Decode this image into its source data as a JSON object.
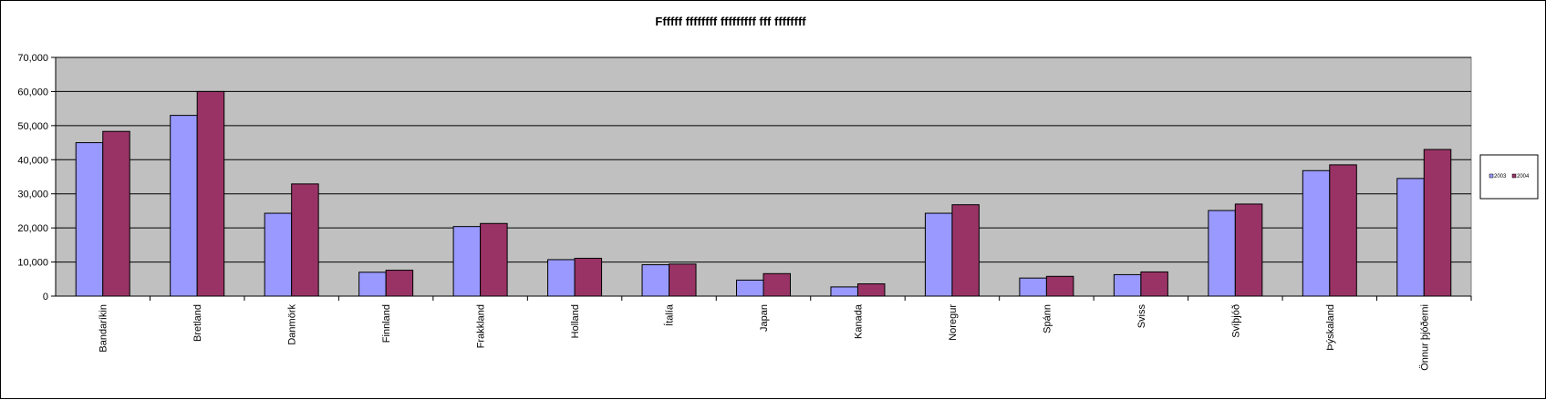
{
  "chart_data": {
    "type": "bar",
    "title": "Ffffff ffffffff fffffffff fff ffffffff",
    "xlabel": "",
    "ylabel": "",
    "ylim": [
      0,
      70000
    ],
    "yticks": [
      "0",
      "10,000",
      "20,000",
      "30,000",
      "40,000",
      "50,000",
      "60,000",
      "70,000"
    ],
    "ytick_values": [
      0,
      10000,
      20000,
      30000,
      40000,
      50000,
      60000,
      70000
    ],
    "grid": true,
    "legend_position": "right",
    "plot_background": "#c0c0c0",
    "categories": [
      "Bandaríkin",
      "Bretland",
      "Danmörk",
      "Finnland",
      "Frakkland",
      "Holland",
      "Ítalía",
      "Japan",
      "Kanada",
      "Noregur",
      "Spánn",
      "Sviss",
      "Svíþjóð",
      "Þýskaland",
      "Önnur þjóðerni"
    ],
    "series": [
      {
        "name": "2003",
        "color": "#9999ff",
        "values": [
          45000,
          53000,
          24300,
          7000,
          20400,
          10700,
          9200,
          4700,
          2700,
          24300,
          5300,
          6300,
          25100,
          36800,
          34500
        ]
      },
      {
        "name": "2004",
        "color": "#993366",
        "values": [
          48300,
          60000,
          32900,
          7600,
          21300,
          11100,
          9400,
          6600,
          3600,
          26800,
          5800,
          7100,
          27000,
          38500,
          43000
        ]
      }
    ]
  }
}
